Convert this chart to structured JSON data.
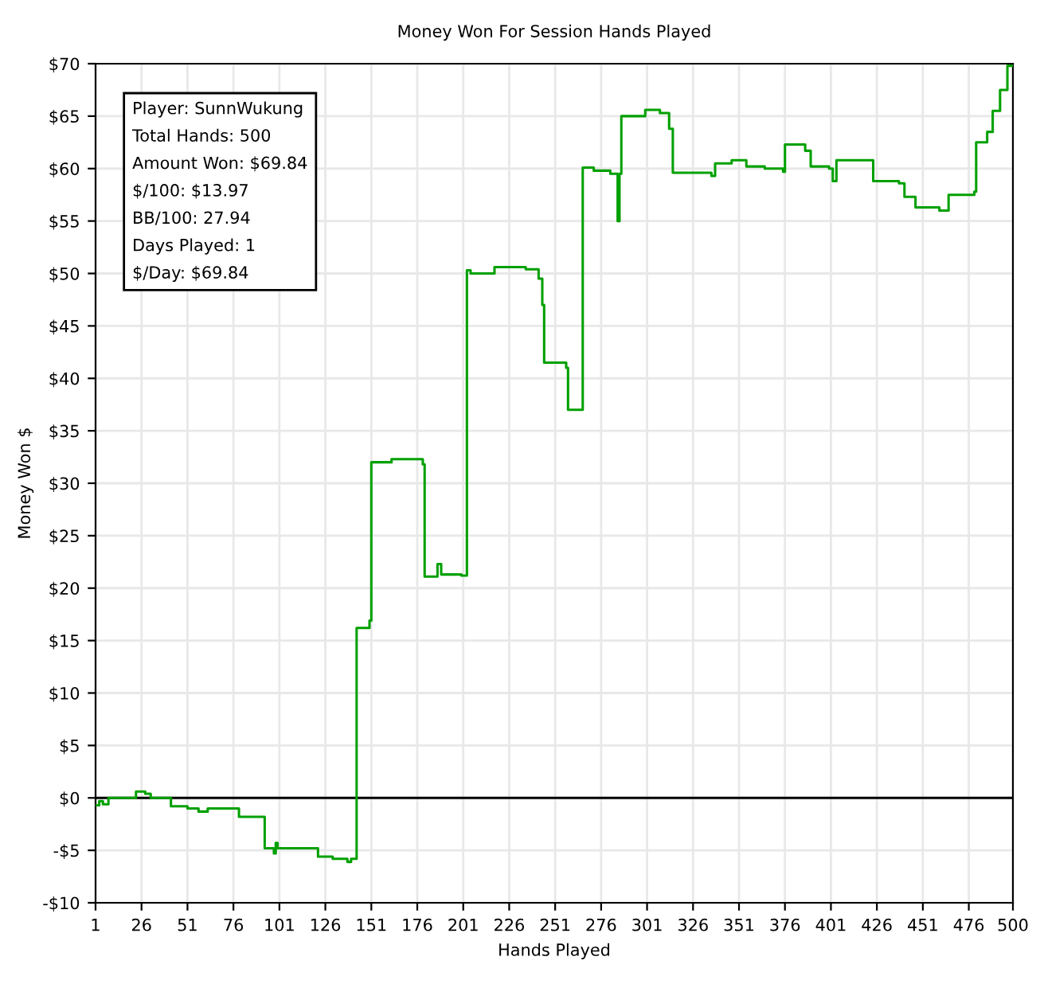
{
  "chart_data": {
    "type": "step",
    "title": "Money Won For Session Hands Played",
    "xlabel": "Hands Played",
    "ylabel": "Money Won $",
    "x": [
      1,
      3,
      5,
      8,
      10,
      14,
      20,
      23,
      28,
      31,
      35,
      42,
      51,
      57,
      62,
      75,
      79,
      92,
      93,
      98,
      99,
      100,
      101,
      118,
      122,
      130,
      138,
      140,
      143,
      143,
      150,
      151,
      162,
      179,
      180,
      187,
      189,
      200,
      203,
      205,
      218,
      235,
      242,
      244,
      245,
      250,
      257,
      258,
      265,
      266,
      272,
      281,
      285,
      286,
      287,
      300,
      308,
      313,
      315,
      336,
      338,
      347,
      355,
      365,
      375,
      376,
      387,
      390,
      400,
      402,
      404,
      420,
      424,
      438,
      441,
      447,
      460,
      465,
      479,
      480,
      486,
      489,
      493,
      497,
      500
    ],
    "series": [
      {
        "color": "#00a000",
        "values": [
          -0.7,
          -0.3,
          -0.6,
          0,
          0,
          0,
          0,
          0.6,
          0.4,
          0,
          0,
          -0.8,
          -1.0,
          -1.3,
          -1.0,
          -1.0,
          -1.8,
          -1.8,
          -4.8,
          -5.3,
          -4.3,
          -4.8,
          -4.8,
          -4.8,
          -5.6,
          -5.8,
          -6.1,
          -5.8,
          -5.8,
          16.2,
          16.9,
          32.0,
          32.3,
          31.8,
          21.1,
          22.3,
          21.3,
          21.2,
          50.3,
          50.0,
          50.6,
          50.4,
          49.5,
          47.0,
          41.5,
          41.5,
          41.0,
          37.0,
          37.0,
          60.1,
          59.8,
          59.5,
          55.0,
          59.5,
          65.0,
          65.6,
          65.3,
          63.8,
          59.6,
          59.3,
          60.5,
          60.8,
          60.2,
          60.0,
          59.7,
          62.3,
          61.7,
          60.2,
          60.0,
          58.8,
          60.8,
          60.8,
          58.8,
          58.6,
          57.3,
          56.3,
          56.0,
          57.5,
          57.8,
          62.5,
          63.5,
          65.5,
          67.5,
          69.8,
          69.8
        ]
      }
    ],
    "xlim": [
      1,
      500
    ],
    "xticks": [
      1,
      26,
      51,
      76,
      101,
      126,
      151,
      176,
      201,
      226,
      251,
      276,
      301,
      326,
      351,
      376,
      401,
      426,
      451,
      476,
      500
    ],
    "ylim": [
      -10,
      70
    ],
    "yticks": [
      {
        "value": -10,
        "label": "-$10"
      },
      {
        "value": -5,
        "label": "-$5"
      },
      {
        "value": 0,
        "label": "$0"
      },
      {
        "value": 5,
        "label": "$5"
      },
      {
        "value": 10,
        "label": "$10"
      },
      {
        "value": 15,
        "label": "$15"
      },
      {
        "value": 20,
        "label": "$20"
      },
      {
        "value": 25,
        "label": "$25"
      },
      {
        "value": 30,
        "label": "$30"
      },
      {
        "value": 35,
        "label": "$35"
      },
      {
        "value": 40,
        "label": "$40"
      },
      {
        "value": 45,
        "label": "$45"
      },
      {
        "value": 50,
        "label": "$50"
      },
      {
        "value": 55,
        "label": "$55"
      },
      {
        "value": 60,
        "label": "$60"
      },
      {
        "value": 65,
        "label": "$65"
      },
      {
        "value": 70,
        "label": "$70"
      }
    ],
    "grid": true,
    "ref_lines": [
      {
        "axis": "y",
        "value": 0,
        "color": "#000000"
      }
    ],
    "annotations": [
      "Player: SunnWukung\nTotal Hands: 500\nAmount Won: $69.84\n$/100: $13.97\nBB/100: 27.94\nDays Played: 1\n$/Day: $69.84"
    ]
  }
}
